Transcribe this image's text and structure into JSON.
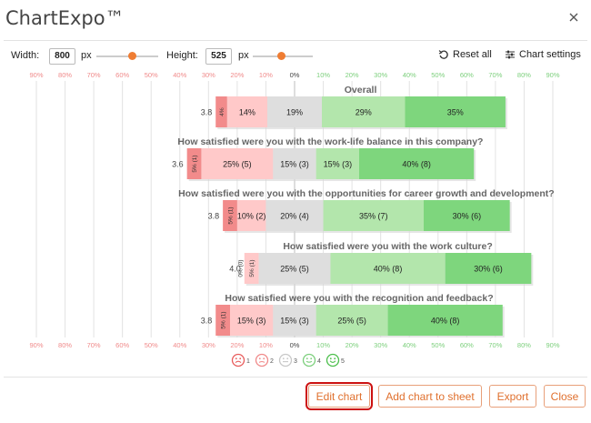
{
  "app": {
    "title": "ChartExpo™"
  },
  "toolbar": {
    "width_label": "Width:",
    "width_value": "800",
    "width_unit": "px",
    "height_label": "Height:",
    "height_value": "525",
    "height_unit": "px",
    "reset_label": "Reset all",
    "settings_label": "Chart settings"
  },
  "axis": {
    "ticks": [
      "90%",
      "80%",
      "70%",
      "60%",
      "50%",
      "40%",
      "30%",
      "20%",
      "10%",
      "0%",
      "10%",
      "20%",
      "30%",
      "40%",
      "50%",
      "60%",
      "70%",
      "80%",
      "90%"
    ]
  },
  "legend": {
    "items": [
      "1",
      "2",
      "3",
      "4",
      "5"
    ]
  },
  "colors": {
    "c1": "#f28b8b",
    "c2": "#ffc9c9",
    "c3": "#dedede",
    "c4": "#b3e6ac",
    "c5": "#7ed67d",
    "negative_tick": "#f08a8a",
    "positive_tick": "#7ccf7c",
    "accent": "#e0702e"
  },
  "chart_data": {
    "type": "bar",
    "subtype": "diverging-stacked-likert",
    "xlim": [
      -90,
      90
    ],
    "categories": [
      "1",
      "2",
      "3",
      "4",
      "5"
    ],
    "rows": [
      {
        "question": "Overall",
        "score": "3.8",
        "values": [
          4,
          14,
          19,
          29,
          35
        ],
        "labels": [
          "4%",
          "14%",
          "19%",
          "29%",
          "35%"
        ]
      },
      {
        "question": "How satisfied were you with the work-life balance in this company?",
        "score": "3.6",
        "values": [
          5,
          25,
          15,
          15,
          40
        ],
        "labels": [
          "5% (1)",
          "25% (5)",
          "15% (3)",
          "15% (3)",
          "40% (8)"
        ]
      },
      {
        "question": "How satisfied were you with the opportunities for career growth and development?",
        "score": "3.8",
        "values": [
          5,
          10,
          20,
          35,
          30
        ],
        "labels": [
          "5% (1)",
          "10% (2)",
          "20% (4)",
          "35% (7)",
          "30% (6)"
        ]
      },
      {
        "question": "How satisfied were you with the work culture?",
        "score": "4.0",
        "values": [
          0,
          5,
          25,
          40,
          30
        ],
        "labels": [
          "0% (0)",
          "5% (1)",
          "25% (5)",
          "40% (8)",
          "30% (6)"
        ]
      },
      {
        "question": "How satisfied were you with the recognition and feedback?",
        "score": "3.8",
        "values": [
          5,
          15,
          15,
          25,
          40
        ],
        "labels": [
          "5% (1)",
          "15% (3)",
          "15% (3)",
          "25% (5)",
          "40% (8)"
        ]
      }
    ]
  },
  "footer": {
    "edit_chart": "Edit chart",
    "add_chart": "Add chart to sheet",
    "export": "Export",
    "close": "Close"
  }
}
